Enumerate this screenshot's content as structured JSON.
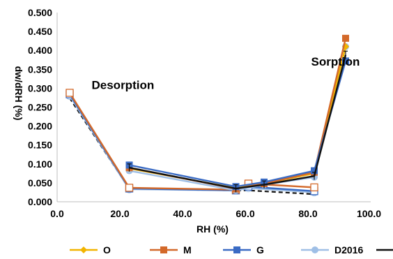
{
  "chart_data": {
    "type": "line",
    "title": "",
    "xlabel": "RH (%)",
    "ylabel": "dw/dRH (%)",
    "xlim": [
      0,
      100
    ],
    "ylim": [
      0,
      0.5
    ],
    "x_ticks": [
      "0.0",
      "20.0",
      "40.0",
      "60.0",
      "80.0",
      "100.0"
    ],
    "y_ticks": [
      "0.000",
      "0.050",
      "0.100",
      "0.150",
      "0.200",
      "0.250",
      "0.300",
      "0.350",
      "0.400",
      "0.450",
      "0.500"
    ],
    "grid": false,
    "legend_position": "bottom",
    "annotations": [
      {
        "text": "Desorption",
        "x": 11,
        "y": 0.298
      },
      {
        "text": "Sorption",
        "x": 81,
        "y": 0.36
      }
    ],
    "series": [
      {
        "name": "O",
        "color": "#f2b400",
        "marker": "diamond",
        "line": "solid",
        "x": [
          23,
          57,
          66,
          82,
          92
        ],
        "y": [
          0.088,
          0.036,
          0.048,
          0.075,
          0.41
        ]
      },
      {
        "name": "M",
        "color": "#d3692a",
        "marker": "square",
        "line": "solid",
        "x": [
          23,
          57,
          66,
          82,
          92
        ],
        "y": [
          0.09,
          0.034,
          0.048,
          0.078,
          0.432
        ]
      },
      {
        "name": "G",
        "color": "#3a6bc4",
        "marker": "square",
        "line": "solid",
        "x": [
          23,
          57,
          66,
          82,
          92
        ],
        "y": [
          0.097,
          0.04,
          0.052,
          0.082,
          0.372
        ]
      },
      {
        "name": "D2016",
        "color": "#9fbfe6",
        "marker": "circle",
        "line": "solid",
        "x": [
          23,
          57,
          66,
          82,
          92
        ],
        "y": [
          0.082,
          0.03,
          0.045,
          0.065,
          0.41
        ]
      },
      {
        "name": "",
        "color": "#111111",
        "marker": "errorbar",
        "line": "solid",
        "x": [
          23,
          57,
          66,
          82,
          92
        ],
        "y": [
          0.09,
          0.035,
          0.045,
          0.068,
          0.388
        ],
        "error": 0.01
      },
      {
        "name": "",
        "color": "#d3692a",
        "marker": "open-square",
        "line": "solid",
        "x": [
          4,
          23,
          57,
          61,
          82
        ],
        "y": [
          0.288,
          0.037,
          0.032,
          0.048,
          0.038
        ]
      },
      {
        "name": "",
        "color": "#3a6bc4",
        "marker": "open-square",
        "line": "solid",
        "x": [
          4,
          23,
          57,
          61,
          82
        ],
        "y": [
          0.284,
          0.035,
          0.03,
          0.04,
          0.028
        ]
      },
      {
        "name": "",
        "color": "#9fbfe6",
        "marker": "open-circle",
        "line": "solid",
        "x": [
          4,
          23,
          57,
          61,
          82
        ],
        "y": [
          0.28,
          0.033,
          0.03,
          0.036,
          0.025
        ]
      },
      {
        "name": "",
        "color": "#111111",
        "marker": "none",
        "line": "dashed",
        "x": [
          4,
          23,
          57,
          61,
          82
        ],
        "y": [
          0.274,
          0.034,
          0.03,
          0.03,
          0.02
        ]
      }
    ]
  }
}
